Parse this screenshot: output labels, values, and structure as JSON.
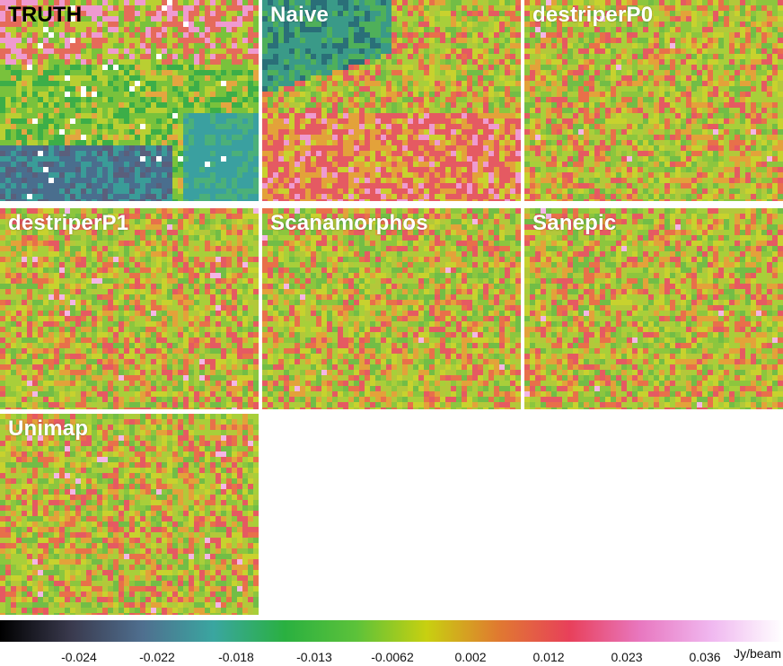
{
  "panels": [
    {
      "id": "truth",
      "label": "TRUTH",
      "label_color": "#000000",
      "style": "truth"
    },
    {
      "id": "naive",
      "label": "Naive",
      "label_color": "#ffffff",
      "style": "naive"
    },
    {
      "id": "p0",
      "label": "destriperP0",
      "label_color": "#ffffff",
      "style": "noise"
    },
    {
      "id": "p1",
      "label": "destriperP1",
      "label_color": "#ffffff",
      "style": "noise"
    },
    {
      "id": "scanamorphos",
      "label": "Scanamorphos",
      "label_color": "#ffffff",
      "style": "noise"
    },
    {
      "id": "sanepic",
      "label": "Sanepic",
      "label_color": "#ffffff",
      "style": "noise"
    },
    {
      "id": "unimap",
      "label": "Unimap",
      "label_color": "#ffffff",
      "style": "noise"
    }
  ],
  "colorbar": {
    "unit": "Jy/beam",
    "ticks": [
      "-0.024",
      "-0.022",
      "-0.018",
      "-0.013",
      "-0.0062",
      "0.002",
      "0.012",
      "0.023",
      "0.036"
    ],
    "colors": [
      "#000000",
      "#3a3a4e",
      "#4f6f8f",
      "#3aa6a0",
      "#2ab040",
      "#5cc23a",
      "#c8d010",
      "#e07a30",
      "#e8405a",
      "#e878c0",
      "#f0b8f0",
      "#ffffff"
    ]
  }
}
